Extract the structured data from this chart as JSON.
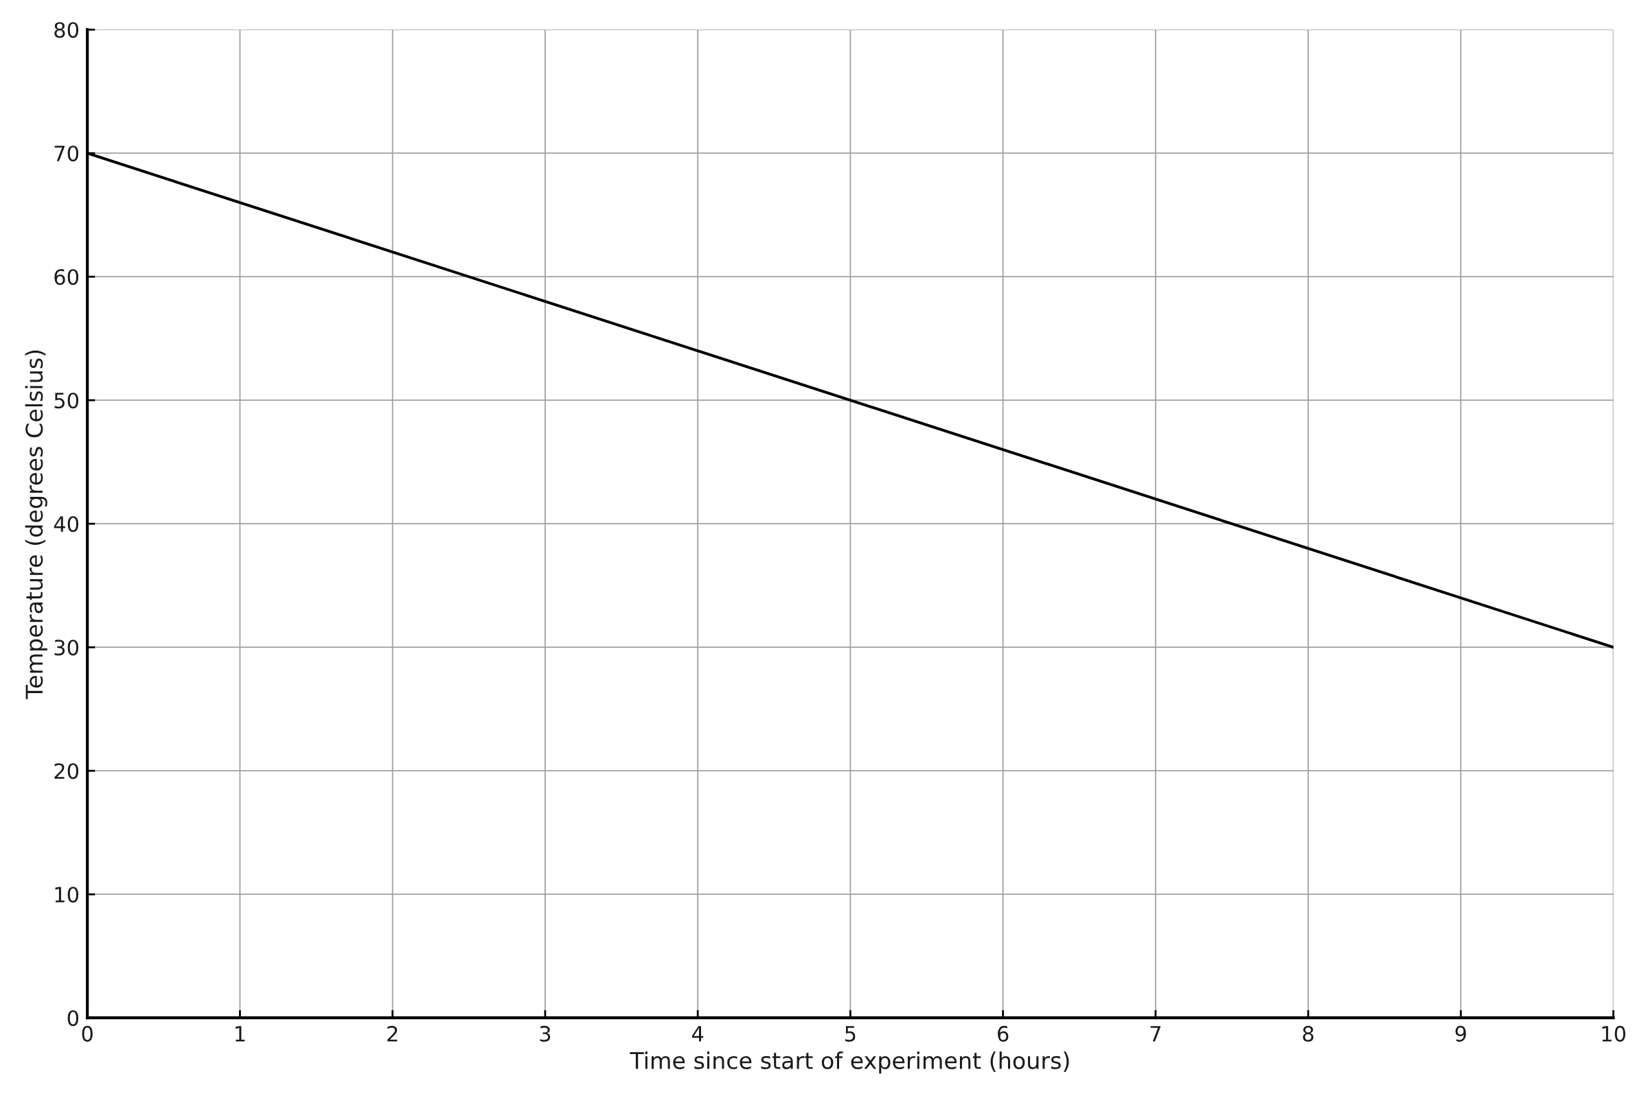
{
  "chart_data": {
    "type": "line",
    "xlabel": "Time since start of experiment (hours)",
    "ylabel": "Temperature (degrees Celsius)",
    "x": [
      0,
      10
    ],
    "series": [
      {
        "color": "#000000",
        "values": [
          70,
          30
        ]
      }
    ],
    "xlim": [
      0,
      10
    ],
    "xticks": [
      0,
      1,
      2,
      3,
      4,
      5,
      6,
      7,
      8,
      9,
      10
    ],
    "ylim": [
      0,
      80
    ],
    "yticks": [
      0,
      10,
      20,
      30,
      40,
      50,
      60,
      70,
      80
    ],
    "grid": true,
    "line_style": "solid"
  }
}
